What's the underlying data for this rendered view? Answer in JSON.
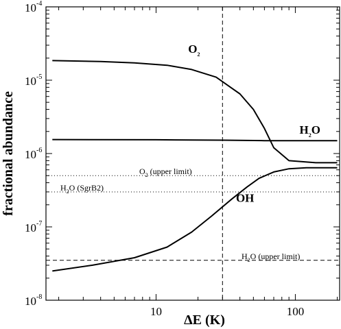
{
  "chart_data": {
    "type": "line",
    "xlabel": "ΔE (K)",
    "ylabel": "fractional abundance",
    "xscale": "log",
    "yscale": "log",
    "xlim": [
      1.62,
      208
    ],
    "ylim": [
      1e-08,
      0.0001
    ],
    "x_tick_labels": [
      {
        "value": 10,
        "label": "10"
      },
      {
        "value": 100,
        "label": "100"
      }
    ],
    "y_tick_labels": [
      {
        "value": 1e-08,
        "base": "10",
        "exp": "-8"
      },
      {
        "value": 1e-07,
        "base": "10",
        "exp": "-7"
      },
      {
        "value": 1e-06,
        "base": "10",
        "exp": "-6"
      },
      {
        "value": 1e-05,
        "base": "10",
        "exp": "-5"
      },
      {
        "value": 0.0001,
        "base": "10",
        "exp": "-4"
      }
    ],
    "series": [
      {
        "label": {
          "main": "O",
          "sub": "2"
        },
        "points": [
          [
            1.8,
            1.85e-05
          ],
          [
            4,
            1.8e-05
          ],
          [
            7,
            1.72e-05
          ],
          [
            12,
            1.6e-05
          ],
          [
            18,
            1.4e-05
          ],
          [
            27,
            1.1e-05
          ],
          [
            40,
            6.5e-06
          ],
          [
            50,
            4e-06
          ],
          [
            60,
            2.2e-06
          ],
          [
            70,
            1.2e-06
          ],
          [
            90,
            8e-07
          ],
          [
            140,
            7.5e-07
          ],
          [
            200,
            7.5e-07
          ]
        ]
      },
      {
        "label": {
          "main": "H",
          "sub": "2",
          "tail": "O"
        },
        "points": [
          [
            1.8,
            1.55e-06
          ],
          [
            10,
            1.54e-06
          ],
          [
            30,
            1.52e-06
          ],
          [
            60,
            1.5e-06
          ],
          [
            100,
            1.5e-06
          ],
          [
            200,
            1.5e-06
          ]
        ]
      },
      {
        "label": {
          "main": "OH"
        },
        "points": [
          [
            1.8,
            2.5e-08
          ],
          [
            3.5,
            3e-08
          ],
          [
            7,
            3.8e-08
          ],
          [
            12,
            5.3e-08
          ],
          [
            18,
            8.5e-08
          ],
          [
            25,
            1.4e-07
          ],
          [
            35,
            2.4e-07
          ],
          [
            45,
            3.5e-07
          ],
          [
            55,
            4.6e-07
          ],
          [
            70,
            5.6e-07
          ],
          [
            90,
            6.2e-07
          ],
          [
            120,
            6.4e-07
          ],
          [
            200,
            6.4e-07
          ]
        ]
      }
    ],
    "reference_lines": [
      {
        "y": 5e-07,
        "style": "dotted",
        "label": {
          "main": "O",
          "sub": "2",
          "tail": " (upper limit)"
        }
      },
      {
        "y": 3e-07,
        "style": "dotted",
        "label": {
          "main": "H",
          "sub": "2",
          "tail": "O (SgrB2)"
        }
      },
      {
        "y": 3.5e-08,
        "style": "dashed",
        "label": {
          "main": "H",
          "sub": "2",
          "tail": "O (upper limit)"
        }
      },
      {
        "x": 30,
        "style": "dashed",
        "orientation": "vertical"
      }
    ],
    "grid": false,
    "legend": "none"
  }
}
